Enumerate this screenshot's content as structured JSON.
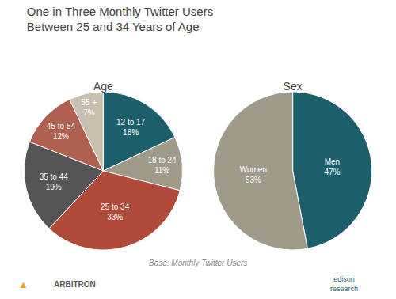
{
  "title": "One in Three Monthly Twitter Users\nBetween 25 and 34 Years of Age",
  "annotations": [
    {
      "text": "Base: Monthly Twitter Users",
      "color": "#888888"
    },
    {
      "text": "▲",
      "color": "#e8a020"
    },
    {
      "text": "ARBITRON",
      "color": "#555555"
    },
    {
      "text": "edison\nresearch",
      "color": "#1c5f6b"
    }
  ],
  "chart_data": [
    {
      "type": "pie",
      "title": "Age",
      "categories": [
        "12 to 17",
        "18 to 24",
        "25 to 34",
        "35 to 44",
        "45 to 54",
        "55 +"
      ],
      "values": [
        18,
        11,
        33,
        19,
        12,
        7
      ],
      "value_labels": [
        "18%",
        "11%",
        "33%",
        "19%",
        "12%",
        "7%"
      ],
      "colors": [
        "#1c5f6b",
        "#a09a8a",
        "#b04a3a",
        "#555555",
        "#b06050",
        "#c8bfb0"
      ],
      "data_labels": true
    },
    {
      "type": "pie",
      "title": "Sex",
      "categories": [
        "Men",
        "Women"
      ],
      "values": [
        47,
        53
      ],
      "value_labels": [
        "47%",
        "53%"
      ],
      "colors": [
        "#1c5f6b",
        "#a09a8a"
      ],
      "data_labels": true
    }
  ]
}
